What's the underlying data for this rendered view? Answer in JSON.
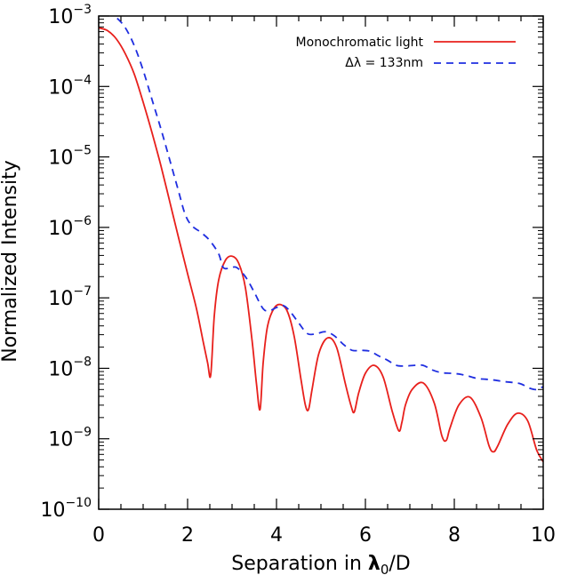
{
  "chart_data": {
    "type": "line",
    "title": "",
    "xlabel_parts": {
      "main": "Separation in ",
      "lambda": "λ",
      "sub": "0",
      "tail": "/D"
    },
    "ylabel": "Normalized Intensity",
    "xlim": [
      0,
      10
    ],
    "ylim": [
      1e-10,
      0.001
    ],
    "y_scale": "log",
    "grid": false,
    "legend_position": "top-right",
    "x_ticks": [
      0,
      2,
      4,
      6,
      8,
      10
    ],
    "x_tick_labels": [
      "0",
      "2",
      "4",
      "6",
      "8",
      "10"
    ],
    "y_ticks": [
      {
        "value": 1e-10,
        "base": "10",
        "exp": "−10"
      },
      {
        "value": 1e-09,
        "base": "10",
        "exp": "−9"
      },
      {
        "value": 1e-08,
        "base": "10",
        "exp": "−8"
      },
      {
        "value": 1e-07,
        "base": "10",
        "exp": "−7"
      },
      {
        "value": 1e-06,
        "base": "10",
        "exp": "−6"
      },
      {
        "value": 1e-05,
        "base": "10",
        "exp": "−5"
      },
      {
        "value": 0.0001,
        "base": "10",
        "exp": "−4"
      },
      {
        "value": 0.001,
        "base": "10",
        "exp": "−3"
      }
    ],
    "series": [
      {
        "name": "Monochromatic light",
        "color": "#e8201c",
        "style": "solid",
        "x": [
          0.0,
          0.2,
          0.4,
          0.6,
          0.8,
          1.0,
          1.2,
          1.4,
          1.6,
          1.8,
          2.0,
          2.2,
          2.35,
          2.45,
          2.52,
          2.6,
          2.7,
          2.85,
          3.0,
          3.15,
          3.3,
          3.45,
          3.55,
          3.63,
          3.7,
          3.8,
          3.95,
          4.1,
          4.25,
          4.4,
          4.55,
          4.65,
          4.72,
          4.8,
          4.95,
          5.15,
          5.35,
          5.55,
          5.68,
          5.75,
          5.85,
          6.0,
          6.2,
          6.4,
          6.6,
          6.75,
          6.82,
          6.9,
          7.05,
          7.3,
          7.55,
          7.72,
          7.82,
          7.9,
          8.1,
          8.35,
          8.6,
          8.78,
          8.88,
          8.98,
          9.2,
          9.42,
          9.65,
          9.85,
          10.0
        ],
        "y": [
          0.00068,
          0.00062,
          0.00047,
          0.00029,
          0.00015,
          6e-05,
          2.2e-05,
          7.5e-06,
          2.3e-06,
          7e-07,
          2.2e-07,
          7e-08,
          2.4e-08,
          1.2e-08,
          8e-09,
          5.5e-08,
          1.8e-07,
          3.4e-07,
          3.9e-07,
          3.1e-07,
          1.4e-07,
          2.5e-08,
          6e-09,
          2.6e-09,
          1.2e-08,
          4e-08,
          7.2e-08,
          8e-08,
          6.3e-08,
          2.8e-08,
          7e-09,
          3e-09,
          2.6e-09,
          5e-09,
          1.6e-08,
          2.7e-08,
          2e-08,
          6e-09,
          2.9e-09,
          2.4e-09,
          4.5e-09,
          8.5e-09,
          1.1e-08,
          7.5e-09,
          2.5e-09,
          1.3e-09,
          1.7e-09,
          3e-09,
          5e-09,
          6.2e-09,
          3.2e-09,
          1.1e-09,
          9.5e-10,
          1.4e-09,
          3e-09,
          3.9e-09,
          2e-09,
          8e-10,
          6.5e-10,
          8e-10,
          1.6e-09,
          2.3e-09,
          1.8e-09,
          7e-10,
          4.7e-10
        ]
      },
      {
        "name": "Δλ = 133nm",
        "color": "#1f2ee0",
        "style": "dashed",
        "x": [
          0.2,
          0.4,
          0.6,
          0.8,
          1.0,
          1.2,
          1.4,
          1.6,
          1.8,
          1.95,
          2.1,
          2.3,
          2.5,
          2.7,
          2.8,
          2.95,
          3.1,
          3.3,
          3.5,
          3.7,
          3.85,
          4.0,
          4.15,
          4.3,
          4.5,
          4.7,
          4.9,
          5.1,
          5.3,
          5.5,
          5.7,
          5.9,
          6.1,
          6.3,
          6.5,
          6.7,
          6.9,
          7.1,
          7.3,
          7.5,
          7.7,
          7.9,
          8.1,
          8.3,
          8.5,
          8.7,
          8.9,
          9.1,
          9.3,
          9.5,
          9.7,
          9.85,
          10.0
        ],
        "y": [
          0.0012,
          0.00095,
          0.00068,
          0.00038,
          0.00017,
          6.5e-05,
          2.5e-05,
          9e-06,
          3.2e-06,
          1.5e-06,
          1.05e-06,
          8.5e-07,
          6.5e-07,
          4.2e-07,
          2.7e-07,
          2.65e-07,
          2.7e-07,
          2e-07,
          1.2e-07,
          7e-08,
          6.6e-08,
          7.3e-08,
          7.8e-08,
          6.5e-08,
          4.4e-08,
          3.1e-08,
          3.1e-08,
          3.3e-08,
          2.9e-08,
          2.2e-08,
          1.8e-08,
          1.8e-08,
          1.75e-08,
          1.5e-08,
          1.3e-08,
          1.1e-08,
          1.08e-08,
          1.1e-08,
          1.1e-08,
          9.5e-09,
          8.7e-09,
          8.5e-09,
          8.3e-09,
          7.8e-09,
          7.2e-09,
          7e-09,
          6.8e-09,
          6.5e-09,
          6.3e-09,
          6e-09,
          5.2e-09,
          5e-09,
          5.5e-09
        ]
      }
    ],
    "legend": [
      {
        "label": "Monochromatic light",
        "series_index": 0
      },
      {
        "label": "Δλ = 133nm",
        "series_index": 1
      }
    ]
  }
}
